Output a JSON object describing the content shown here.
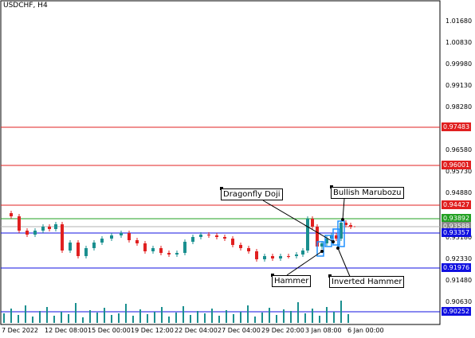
{
  "window": {
    "title": "USDCHF, H4"
  },
  "price_axis": {
    "ticks": [
      "1.01680",
      "1.00830",
      "0.99980",
      "0.99130",
      "0.98280",
      "0.96580",
      "0.95730",
      "0.94880",
      "0.93180",
      "0.92330",
      "0.91480",
      "0.90630"
    ]
  },
  "price_tags": [
    {
      "text": "0.97483",
      "color": "#e02020"
    },
    {
      "text": "0.96001",
      "color": "#e02020"
    },
    {
      "text": "0.94427",
      "color": "#e02020"
    },
    {
      "text": "0.93892",
      "color": "#22a022"
    },
    {
      "text": "0.93588",
      "color": "#8a8a8a"
    },
    {
      "text": "0.93357",
      "color": "#1010e0"
    },
    {
      "text": "0.91976",
      "color": "#1010e0"
    },
    {
      "text": "0.90252",
      "color": "#1010e0"
    }
  ],
  "time_axis": {
    "ticks": [
      "7 Dec 2022",
      "12 Dec 08:00",
      "15 Dec 00:00",
      "19 Dec 12:00",
      "22 Dec 04:00",
      "27 Dec 04:00",
      "29 Dec 20:00",
      "3 Jan 08:00",
      "6 Jan 00:00"
    ]
  },
  "annotations": {
    "dragonfly_doji": "Dragonfly Doji",
    "bullish_marubozu": "Bullish Marubozu",
    "hammer": "Hammer",
    "inverted_hammer": "Inverted Hammer"
  },
  "colors": {
    "bull": "#1a8f8f",
    "bear": "#e02020",
    "resistance": "#e02020",
    "support": "#1010e0",
    "pivot": "#22a022",
    "volume": "#1a8f8f",
    "pattern_box": "#1e90ff"
  }
}
